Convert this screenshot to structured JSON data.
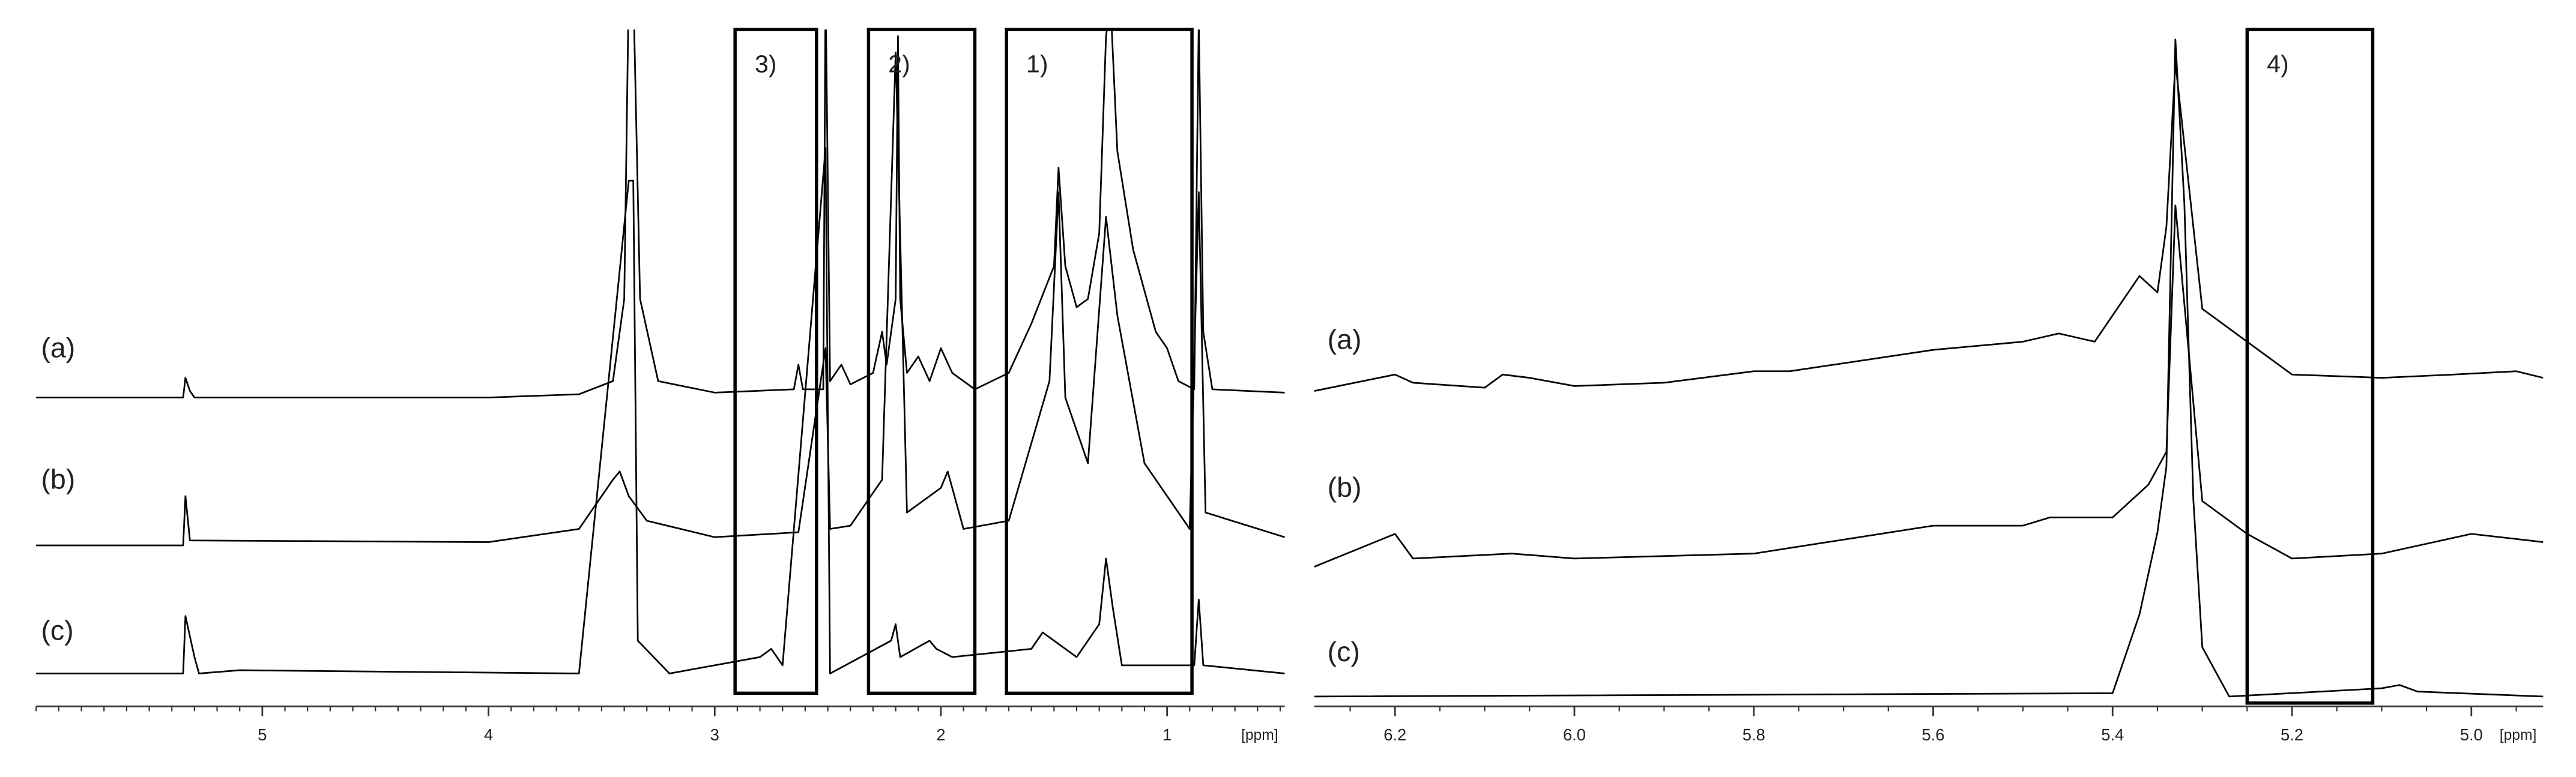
{
  "chart_data": [
    {
      "type": "line",
      "xlim": [
        6.0,
        0.48
      ],
      "xticks": [
        5,
        4,
        3,
        2,
        1
      ],
      "xlabel": "[ppm]",
      "ylim": [
        0,
        400
      ],
      "series": [
        {
          "name": "(a)",
          "color": "#000000",
          "x": [
            6.0,
            5.35,
            5.34,
            5.32,
            5.3,
            4.0,
            3.6,
            3.45,
            3.4,
            3.38,
            3.36,
            3.33,
            3.25,
            3.0,
            2.65,
            2.63,
            2.61,
            2.52,
            2.51,
            2.49,
            2.44,
            2.4,
            2.3,
            2.26,
            2.24,
            2.2,
            2.19,
            2.18,
            2.15,
            2.1,
            2.05,
            2.0,
            1.95,
            1.85,
            1.7,
            1.6,
            1.5,
            1.48,
            1.45,
            1.4,
            1.35,
            1.3,
            1.27,
            1.25,
            1.22,
            1.15,
            1.05,
            1.0,
            0.95,
            0.88,
            0.86,
            0.84,
            0.8,
            0.48
          ],
          "values": [
            0,
            0,
            12,
            4,
            0,
            0,
            2,
            10,
            60,
            250,
            250,
            60,
            10,
            3,
            5,
            20,
            5,
            5,
            250,
            10,
            20,
            8,
            15,
            40,
            20,
            60,
            220,
            60,
            15,
            25,
            10,
            30,
            15,
            5,
            15,
            45,
            80,
            140,
            80,
            55,
            60,
            100,
            220,
            240,
            150,
            90,
            40,
            30,
            10,
            5,
            230,
            40,
            5,
            3
          ]
        },
        {
          "name": "(b)",
          "color": "#000000",
          "x": [
            6.0,
            5.35,
            5.34,
            5.32,
            4.0,
            3.6,
            3.45,
            3.42,
            3.38,
            3.3,
            3.0,
            2.63,
            2.51,
            2.49,
            2.4,
            2.26,
            2.2,
            2.15,
            2.0,
            1.97,
            1.9,
            1.7,
            1.52,
            1.48,
            1.45,
            1.35,
            1.27,
            1.22,
            1.1,
            1.0,
            0.9,
            0.86,
            0.83,
            0.48
          ],
          "values": [
            0,
            0,
            30,
            3,
            2,
            10,
            40,
            45,
            30,
            15,
            5,
            8,
            120,
            10,
            12,
            40,
            300,
            20,
            35,
            45,
            10,
            15,
            100,
            215,
            90,
            50,
            200,
            140,
            50,
            30,
            10,
            215,
            20,
            5
          ]
        },
        {
          "name": "(c)",
          "color": "#000000",
          "x": [
            6.0,
            5.35,
            5.34,
            5.3,
            5.28,
            5.1,
            3.6,
            3.38,
            3.36,
            3.34,
            3.2,
            2.8,
            2.75,
            2.7,
            2.51,
            2.49,
            2.22,
            2.2,
            2.18,
            2.05,
            2.02,
            1.95,
            1.6,
            1.55,
            1.5,
            1.4,
            1.3,
            1.27,
            1.24,
            1.2,
            0.88,
            0.86,
            0.84,
            0.48
          ],
          "values": [
            0,
            0,
            35,
            10,
            0,
            2,
            0,
            300,
            300,
            20,
            0,
            10,
            15,
            5,
            320,
            0,
            20,
            30,
            10,
            20,
            15,
            10,
            15,
            25,
            20,
            10,
            30,
            70,
            40,
            5,
            5,
            45,
            5,
            0
          ]
        }
      ],
      "annotations": [
        {
          "label": "3)",
          "x": [
            2.91,
            2.55
          ]
        },
        {
          "label": "2)",
          "x": [
            2.32,
            1.85
          ]
        },
        {
          "label": "1)",
          "x": [
            1.71,
            0.89
          ]
        }
      ]
    },
    {
      "type": "line",
      "xlim": [
        6.29,
        4.92
      ],
      "xticks": [
        6.2,
        {
          "value": 6.0,
          "label": "6.0"
        },
        5.8,
        5.6,
        5.4,
        5.2,
        {
          "value": 5.0,
          "label": "5.0"
        }
      ],
      "xlabel": "[ppm]",
      "ylim": [
        0,
        400
      ],
      "series": [
        {
          "name": "(a)",
          "color": "#000000",
          "x": [
            6.29,
            6.2,
            6.18,
            6.1,
            6.08,
            6.05,
            6.0,
            5.9,
            5.8,
            5.76,
            5.6,
            5.5,
            5.46,
            5.42,
            5.37,
            5.35,
            5.34,
            5.33,
            5.32,
            5.31,
            5.3,
            5.25,
            5.2,
            5.1,
            5.02,
            4.95,
            4.92
          ],
          "values": [
            0,
            10,
            5,
            2,
            10,
            8,
            3,
            5,
            12,
            12,
            25,
            30,
            35,
            30,
            70,
            60,
            100,
            200,
            150,
            100,
            50,
            30,
            10,
            8,
            10,
            12,
            8
          ]
        },
        {
          "name": "(b)",
          "color": "#000000",
          "x": [
            6.29,
            6.2,
            6.18,
            6.07,
            6.0,
            5.8,
            5.6,
            5.5,
            5.47,
            5.4,
            5.36,
            5.34,
            5.33,
            5.32,
            5.3,
            5.25,
            5.2,
            5.1,
            5.0,
            4.92
          ],
          "values": [
            0,
            20,
            5,
            8,
            5,
            8,
            25,
            25,
            30,
            30,
            50,
            70,
            220,
            160,
            40,
            20,
            5,
            8,
            20,
            15
          ]
        },
        {
          "name": "(c)",
          "color": "#000000",
          "x": [
            6.29,
            5.4,
            5.37,
            5.35,
            5.34,
            5.33,
            5.32,
            5.31,
            5.3,
            5.29,
            5.27,
            5.1,
            5.08,
            5.06,
            4.92
          ],
          "values": [
            0,
            2,
            50,
            100,
            140,
            400,
            300,
            120,
            30,
            20,
            0,
            5,
            7,
            3,
            0
          ]
        }
      ],
      "annotations": [
        {
          "label": "4)",
          "x": [
            5.25,
            5.11
          ]
        }
      ]
    }
  ]
}
